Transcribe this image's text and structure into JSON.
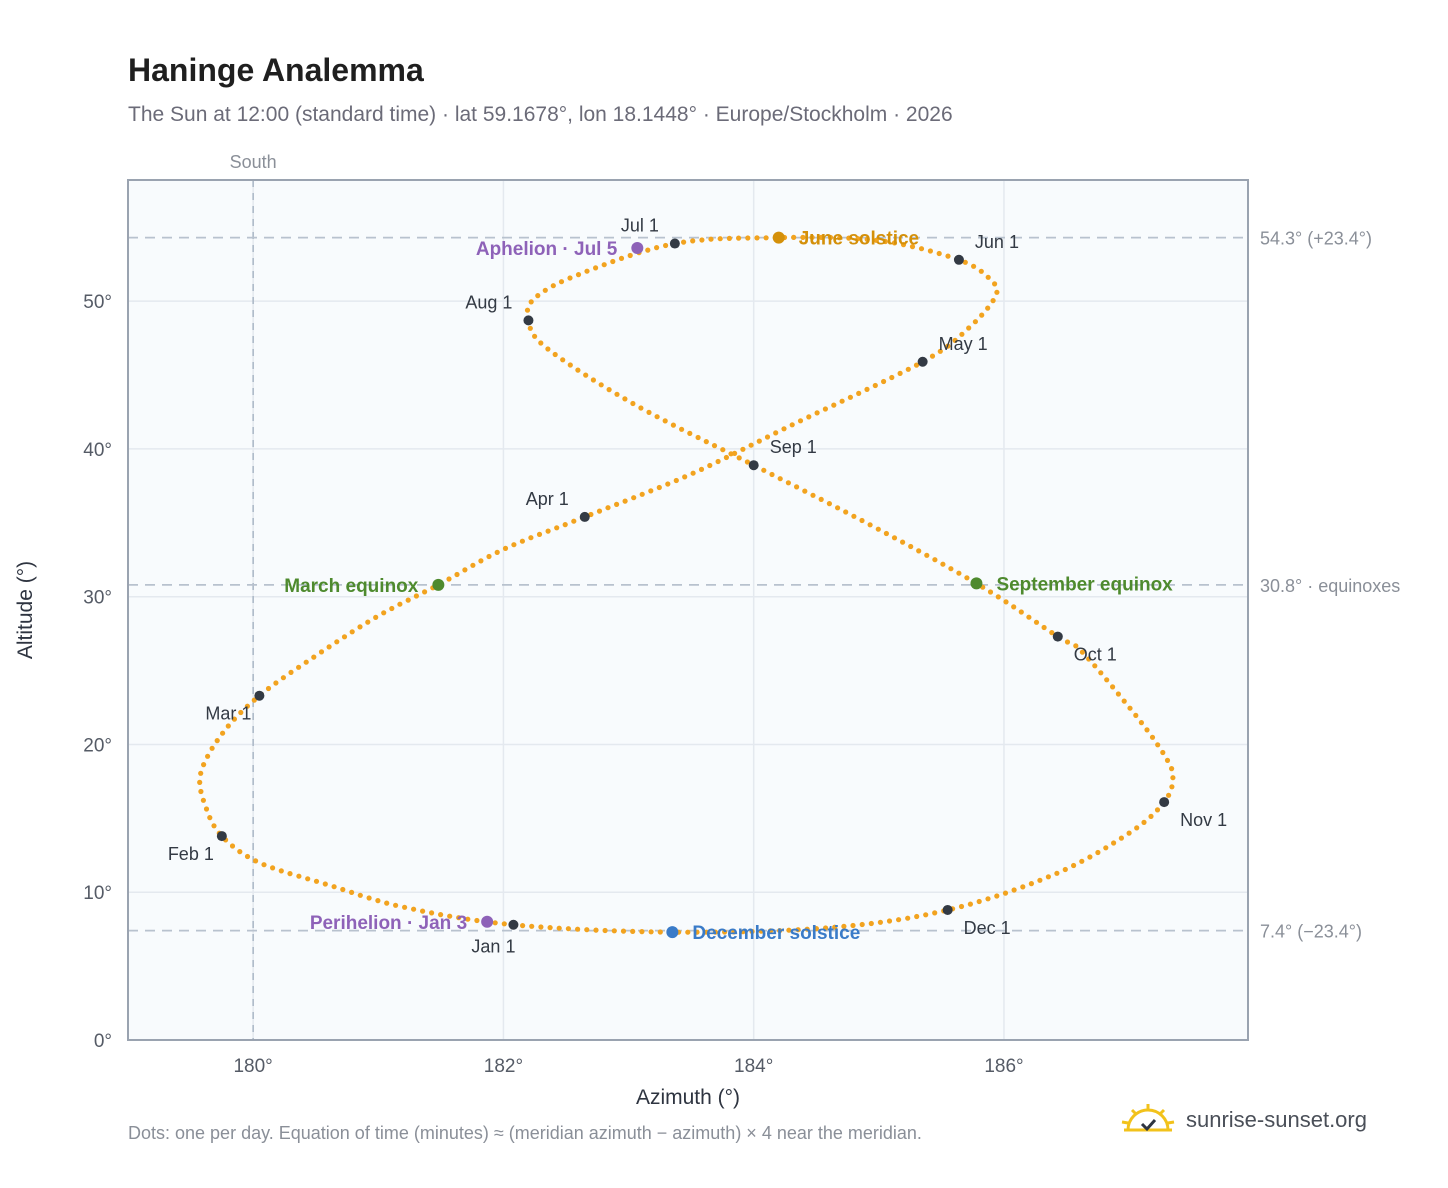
{
  "title": "Haninge Analemma",
  "subtitle": "The Sun at 12:00 (standard time) · lat 59.1678°, lon 18.1448° · Europe/Stockholm · 2026",
  "footnote": "Dots: one per day. Equation of time (minutes) ≈ (meridian azimuth − azimuth) × 4 near the meridian.",
  "brand": {
    "name": "sunrise-sunset.org",
    "icon": "sun-logo-icon"
  },
  "colors": {
    "curve": "#f2a31f",
    "month_dot": "#333a44",
    "equinox": "#4e8a2e",
    "june_solstice": "#d4900a",
    "december_solstice": "#3a7bc8",
    "aphelion_perihelion": "#8e62b8",
    "plot_bg": "#f8fbfd",
    "grid": "#e4e9ef",
    "frame": "#9aa3b0"
  },
  "chart_data": {
    "type": "scatter",
    "xlabel": "Azimuth (°)",
    "ylabel": "Altitude (°)",
    "xlim": [
      179.0,
      187.95
    ],
    "ylim": [
      0,
      58.2
    ],
    "x_ticks": [
      180,
      182,
      184,
      186
    ],
    "x_tick_labels": [
      "180°",
      "182°",
      "184°",
      "186°"
    ],
    "y_ticks": [
      0,
      10,
      20,
      30,
      40,
      50
    ],
    "y_tick_labels": [
      "0°",
      "10°",
      "20°",
      "30°",
      "40°",
      "50°"
    ],
    "grid": true,
    "south_line": {
      "azimuth": 180,
      "label": "South"
    },
    "reference_lines": [
      {
        "altitude": 54.3,
        "label": "54.3° (+23.4°)"
      },
      {
        "altitude": 30.8,
        "label": "30.8° · equinoxes"
      },
      {
        "altitude": 7.4,
        "label": "7.4° (−23.4°)"
      }
    ],
    "analemma_path": [
      [
        182.08,
        7.8
      ],
      [
        183.35,
        7.3
      ],
      [
        184.6,
        7.6
      ],
      [
        185.55,
        8.8
      ],
      [
        186.4,
        11.2
      ],
      [
        187.0,
        14.0
      ],
      [
        187.28,
        16.1
      ],
      [
        187.35,
        17.8
      ],
      [
        187.28,
        19.3
      ],
      [
        187.05,
        22.0
      ],
      [
        186.62,
        26.3
      ],
      [
        186.43,
        27.3
      ],
      [
        185.78,
        30.9
      ],
      [
        184.9,
        35.0
      ],
      [
        184.0,
        38.9
      ],
      [
        183.05,
        43.0
      ],
      [
        182.35,
        46.8
      ],
      [
        182.2,
        48.7
      ],
      [
        182.25,
        50.2
      ],
      [
        182.6,
        51.8
      ],
      [
        183.37,
        53.9
      ],
      [
        184.2,
        54.3
      ],
      [
        185.0,
        54.1
      ],
      [
        185.64,
        52.8
      ],
      [
        185.9,
        51.4
      ],
      [
        185.93,
        50.3
      ],
      [
        185.72,
        48.2
      ],
      [
        185.35,
        45.9
      ],
      [
        184.3,
        41.6
      ],
      [
        183.5,
        38.3
      ],
      [
        182.65,
        35.4
      ],
      [
        182.0,
        33.2
      ],
      [
        181.48,
        30.8
      ],
      [
        181.0,
        28.7
      ],
      [
        180.5,
        26.0
      ],
      [
        180.05,
        23.3
      ],
      [
        179.75,
        20.7
      ],
      [
        179.58,
        18.0
      ],
      [
        179.62,
        15.8
      ],
      [
        179.75,
        13.8
      ],
      [
        180.05,
        12.0
      ],
      [
        180.6,
        10.5
      ],
      [
        181.2,
        9.0
      ],
      [
        182.08,
        7.8
      ]
    ],
    "month_markers": [
      {
        "label": "Jan 1",
        "az": 182.08,
        "alt": 7.8,
        "anchor": "below"
      },
      {
        "label": "Feb 1",
        "az": 179.75,
        "alt": 13.8,
        "anchor": "lower-left"
      },
      {
        "label": "Mar 1",
        "az": 180.05,
        "alt": 23.3,
        "anchor": "lower-left"
      },
      {
        "label": "Apr 1",
        "az": 182.65,
        "alt": 35.4,
        "anchor": "upper-left"
      },
      {
        "label": "May 1",
        "az": 185.35,
        "alt": 45.9,
        "anchor": "upper-right"
      },
      {
        "label": "Jun 1",
        "az": 185.64,
        "alt": 52.8,
        "anchor": "upper-right"
      },
      {
        "label": "Jul 1",
        "az": 183.37,
        "alt": 53.9,
        "anchor": "upper-left"
      },
      {
        "label": "Aug 1",
        "az": 182.2,
        "alt": 48.7,
        "anchor": "upper-left"
      },
      {
        "label": "Sep 1",
        "az": 184.0,
        "alt": 38.9,
        "anchor": "upper-right"
      },
      {
        "label": "Oct 1",
        "az": 186.43,
        "alt": 27.3,
        "anchor": "lower-right"
      },
      {
        "label": "Nov 1",
        "az": 187.28,
        "alt": 16.1,
        "anchor": "lower-right"
      },
      {
        "label": "Dec 1",
        "az": 185.55,
        "alt": 8.8,
        "anchor": "lower-right"
      }
    ],
    "events": [
      {
        "label": "June solstice",
        "az": 184.2,
        "alt": 54.3,
        "color_key": "june_solstice",
        "side": "right"
      },
      {
        "label": "December solstice",
        "az": 183.35,
        "alt": 7.3,
        "color_key": "december_solstice",
        "side": "right"
      },
      {
        "label": "March equinox",
        "az": 181.48,
        "alt": 30.8,
        "color_key": "equinox",
        "side": "left"
      },
      {
        "label": "September equinox",
        "az": 185.78,
        "alt": 30.9,
        "color_key": "equinox",
        "side": "right"
      },
      {
        "label": "Aphelion · Jul 5",
        "az": 183.07,
        "alt": 53.6,
        "color_key": "aphelion_perihelion",
        "side": "left"
      },
      {
        "label": "Perihelion · Jan 3",
        "az": 181.87,
        "alt": 8.0,
        "color_key": "aphelion_perihelion",
        "side": "left"
      }
    ]
  }
}
